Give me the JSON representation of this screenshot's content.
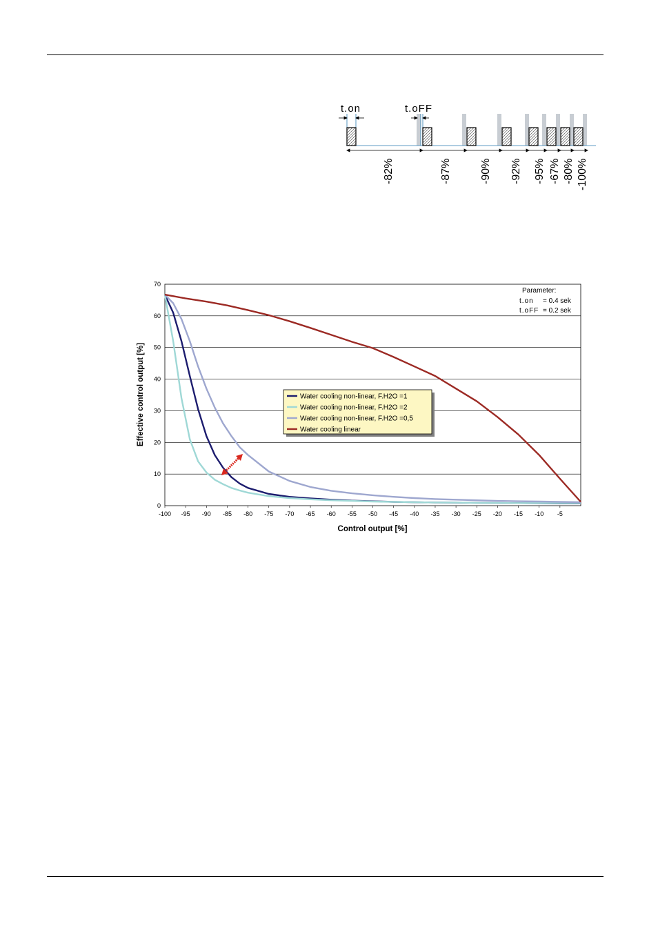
{
  "pulse_diagram": {
    "t_on_label": "t.on",
    "t_off_label": "t.oFF",
    "percent_labels": [
      "-82%",
      "-87%",
      "-90%",
      "-92%",
      "-95%",
      "-67%",
      "-80%",
      "-100%"
    ]
  },
  "chart_data": {
    "type": "line",
    "xlabel": "Control output [%]",
    "ylabel": "Effective control output [%]",
    "xlim": [
      -100,
      0
    ],
    "ylim": [
      0,
      70
    ],
    "x_ticks": [
      "-100",
      "-95",
      "-90",
      "-85",
      "-80",
      "-75",
      "-70",
      "-65",
      "-60",
      "-55",
      "-50",
      "-45",
      "-40",
      "-35",
      "-30",
      "-25",
      "-20",
      "-15",
      "-10",
      "-5"
    ],
    "y_ticks": [
      "0",
      "10",
      "20",
      "30",
      "40",
      "50",
      "60",
      "70"
    ],
    "grid": "horizontal",
    "legend_position": "center-right",
    "parameter_box": {
      "title": "Parameter:",
      "lines": [
        {
          "name": "t.on",
          "value": "= 0.4 sek"
        },
        {
          "name": "t.oFF",
          "value": "= 0.2 sek"
        }
      ]
    },
    "series": [
      {
        "name": "Water cooling non-linear, F.H2O =1",
        "color": "#1c1c6e",
        "x": [
          -100,
          -98,
          -96,
          -94,
          -92,
          -90,
          -88,
          -86,
          -84,
          -82,
          -80,
          -75,
          -70,
          -65,
          -60,
          -55,
          -50,
          -45,
          -40,
          -35,
          -30,
          -25,
          -20,
          -15,
          -10,
          -5,
          0
        ],
        "y": [
          66.7,
          61,
          52,
          41,
          30.5,
          22,
          16,
          12,
          9,
          7,
          5.6,
          3.7,
          2.8,
          2.3,
          1.9,
          1.6,
          1.4,
          1.2,
          1.1,
          1.0,
          0.95,
          0.9,
          0.85,
          0.8,
          0.75,
          0.7,
          0.7
        ]
      },
      {
        "name": "Water cooling non-linear, F.H2O =2",
        "color": "#9fd8d6",
        "x": [
          -100,
          -98,
          -96,
          -94,
          -92,
          -90,
          -88,
          -86,
          -84,
          -82,
          -80,
          -75,
          -70,
          -65,
          -60,
          -55,
          -50,
          -45,
          -40,
          -35,
          -30,
          -25,
          -20,
          -15,
          -10,
          -5,
          0
        ],
        "y": [
          66.7,
          52,
          34,
          21,
          14,
          10.5,
          8.2,
          6.8,
          5.6,
          4.8,
          4.1,
          3.0,
          2.4,
          2.0,
          1.7,
          1.5,
          1.3,
          1.2,
          1.1,
          1.0,
          0.95,
          0.9,
          0.85,
          0.8,
          0.8,
          0.8,
          0.8
        ]
      },
      {
        "name": "Water cooling non-linear, F.H2O =0,5",
        "color": "#9ea7cf",
        "x": [
          -100,
          -98,
          -96,
          -94,
          -92,
          -90,
          -88,
          -86,
          -84,
          -82,
          -80,
          -75,
          -70,
          -65,
          -60,
          -55,
          -50,
          -45,
          -40,
          -35,
          -30,
          -25,
          -20,
          -15,
          -10,
          -5,
          0
        ],
        "y": [
          66.7,
          64,
          59,
          52,
          44,
          37,
          31,
          26,
          22,
          18.5,
          16,
          10.8,
          7.8,
          5.9,
          4.7,
          3.9,
          3.3,
          2.8,
          2.4,
          2.1,
          1.9,
          1.7,
          1.5,
          1.4,
          1.3,
          1.2,
          1.1
        ]
      },
      {
        "name": "Water cooling linear",
        "color": "#9c2a24",
        "x": [
          -100,
          -95,
          -90,
          -85,
          -80,
          -75,
          -70,
          -65,
          -60,
          -55,
          -50,
          -45,
          -40,
          -35,
          -30,
          -25,
          -20,
          -15,
          -10,
          -5,
          0
        ],
        "y": [
          66.7,
          65.5,
          64.5,
          63.3,
          61.8,
          60.2,
          58.3,
          56.2,
          54,
          51.8,
          49.8,
          47,
          44,
          41,
          37,
          33,
          28,
          22.5,
          16,
          8.5,
          1.2
        ]
      }
    ]
  }
}
